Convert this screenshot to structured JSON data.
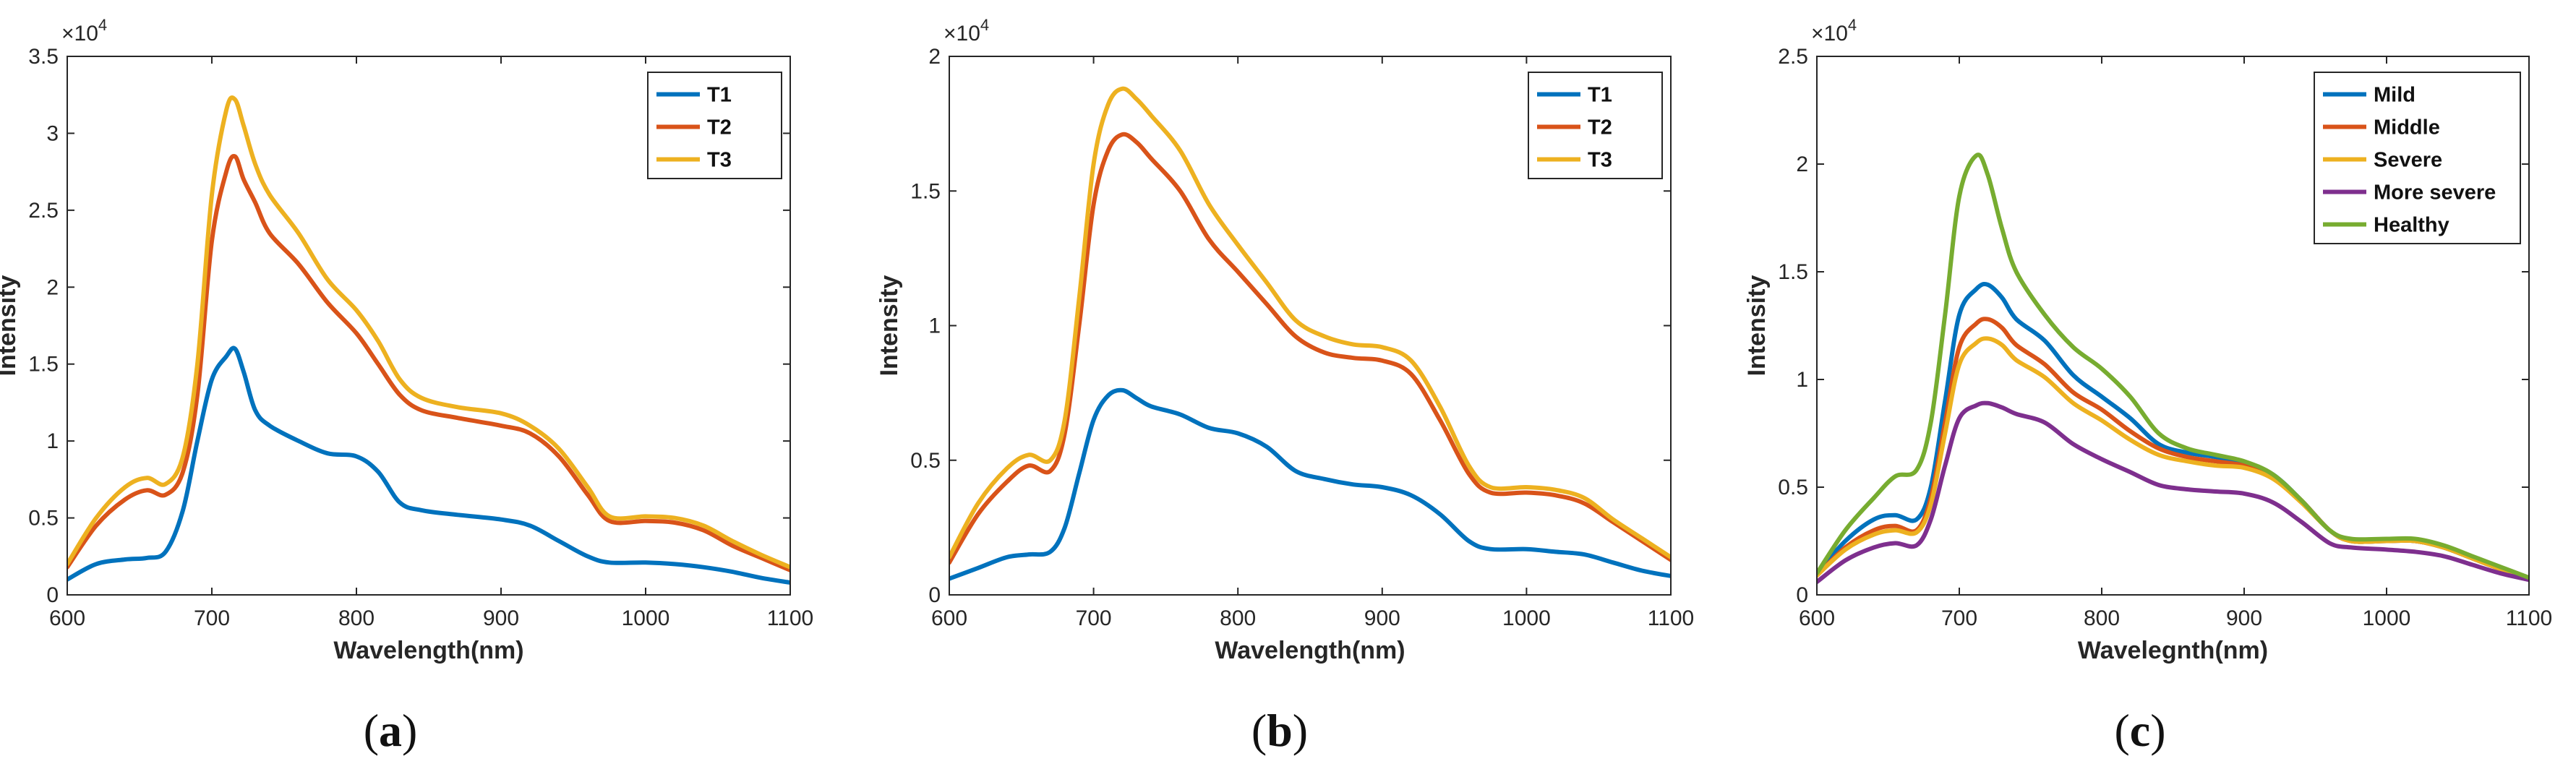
{
  "colors": {
    "blue": "#0072BD",
    "orange": "#D95319",
    "yellow": "#EDB120",
    "purple": "#7E2F8E",
    "green": "#77AC30"
  },
  "chart_data": [
    {
      "type": "line",
      "panel": "a",
      "caption_open": "(",
      "caption_letter": "a",
      "caption_close": ")",
      "xlabel": "Wavelength(nm)",
      "ylabel": "Intensity",
      "multiplier_base": "×10",
      "multiplier_exp": "4",
      "xlim": [
        600,
        1100
      ],
      "ylim": [
        0,
        3.5
      ],
      "xticks": [
        600,
        700,
        800,
        900,
        1000,
        1100
      ],
      "xtick_labels": [
        "600",
        "700",
        "800",
        "900",
        "1000",
        "1100"
      ],
      "yticks": [
        0,
        0.5,
        1,
        1.5,
        2,
        2.5,
        3,
        3.5
      ],
      "ytick_labels": [
        "0",
        "0.5",
        "1",
        "1.5",
        "2",
        "2.5",
        "3",
        "3.5"
      ],
      "legend_position": "top-right",
      "x": [
        600,
        620,
        640,
        655,
        668,
        680,
        690,
        700,
        710,
        716,
        722,
        730,
        740,
        760,
        780,
        800,
        815,
        830,
        845,
        870,
        900,
        920,
        940,
        960,
        975,
        1000,
        1020,
        1040,
        1060,
        1080,
        1100
      ],
      "series": [
        {
          "name": "T1",
          "color": "blue",
          "values": [
            0.1,
            0.2,
            0.23,
            0.24,
            0.28,
            0.55,
            1.0,
            1.4,
            1.55,
            1.6,
            1.45,
            1.2,
            1.1,
            1.0,
            0.92,
            0.9,
            0.8,
            0.6,
            0.55,
            0.52,
            0.49,
            0.45,
            0.35,
            0.25,
            0.21,
            0.21,
            0.2,
            0.18,
            0.15,
            0.11,
            0.08
          ]
        },
        {
          "name": "T2",
          "color": "orange",
          "values": [
            0.18,
            0.45,
            0.62,
            0.68,
            0.65,
            0.8,
            1.3,
            2.3,
            2.75,
            2.85,
            2.7,
            2.55,
            2.35,
            2.15,
            1.9,
            1.7,
            1.5,
            1.3,
            1.2,
            1.15,
            1.1,
            1.05,
            0.9,
            0.65,
            0.48,
            0.48,
            0.47,
            0.42,
            0.32,
            0.24,
            0.16
          ]
        },
        {
          "name": "T3",
          "color": "yellow",
          "values": [
            0.2,
            0.5,
            0.7,
            0.76,
            0.72,
            0.9,
            1.5,
            2.6,
            3.15,
            3.22,
            3.05,
            2.8,
            2.6,
            2.35,
            2.05,
            1.85,
            1.65,
            1.4,
            1.28,
            1.22,
            1.18,
            1.1,
            0.95,
            0.7,
            0.51,
            0.51,
            0.5,
            0.45,
            0.35,
            0.26,
            0.18
          ]
        }
      ]
    },
    {
      "type": "line",
      "panel": "b",
      "caption_open": "(",
      "caption_letter": "b",
      "caption_close": ")",
      "xlabel": "Wavelength(nm)",
      "ylabel": "Intensity",
      "multiplier_base": "×10",
      "multiplier_exp": "4",
      "xlim": [
        600,
        1100
      ],
      "ylim": [
        0,
        2
      ],
      "xticks": [
        600,
        700,
        800,
        900,
        1000,
        1100
      ],
      "xtick_labels": [
        "600",
        "700",
        "800",
        "900",
        "1000",
        "1100"
      ],
      "yticks": [
        0,
        0.5,
        1,
        1.5,
        2
      ],
      "ytick_labels": [
        "0",
        "0.5",
        "1",
        "1.5",
        "2"
      ],
      "legend_position": "top-right",
      "x": [
        600,
        620,
        640,
        655,
        670,
        680,
        690,
        700,
        710,
        720,
        730,
        740,
        760,
        780,
        800,
        820,
        840,
        860,
        880,
        900,
        920,
        940,
        960,
        975,
        1000,
        1020,
        1040,
        1060,
        1080,
        1100
      ],
      "series": [
        {
          "name": "T1",
          "color": "blue",
          "values": [
            0.06,
            0.1,
            0.14,
            0.15,
            0.16,
            0.25,
            0.45,
            0.65,
            0.74,
            0.76,
            0.73,
            0.7,
            0.67,
            0.62,
            0.6,
            0.55,
            0.46,
            0.43,
            0.41,
            0.4,
            0.37,
            0.3,
            0.2,
            0.17,
            0.17,
            0.16,
            0.15,
            0.12,
            0.09,
            0.07
          ]
        },
        {
          "name": "T2",
          "color": "orange",
          "values": [
            0.12,
            0.3,
            0.42,
            0.48,
            0.46,
            0.6,
            1.0,
            1.45,
            1.65,
            1.71,
            1.68,
            1.62,
            1.5,
            1.32,
            1.2,
            1.08,
            0.96,
            0.9,
            0.88,
            0.87,
            0.82,
            0.65,
            0.45,
            0.38,
            0.38,
            0.37,
            0.34,
            0.27,
            0.2,
            0.13
          ]
        },
        {
          "name": "T3",
          "color": "yellow",
          "values": [
            0.14,
            0.34,
            0.47,
            0.52,
            0.5,
            0.65,
            1.1,
            1.6,
            1.82,
            1.88,
            1.84,
            1.78,
            1.65,
            1.45,
            1.3,
            1.16,
            1.02,
            0.96,
            0.93,
            0.92,
            0.87,
            0.7,
            0.48,
            0.4,
            0.4,
            0.39,
            0.36,
            0.28,
            0.21,
            0.14
          ]
        }
      ]
    },
    {
      "type": "line",
      "panel": "c",
      "caption_open": "(",
      "caption_letter": "c",
      "caption_close": ")",
      "xlabel": "Wavelegnth(nm)",
      "ylabel": "Intensity",
      "multiplier_base": "×10",
      "multiplier_exp": "4",
      "xlim": [
        600,
        1100
      ],
      "ylim": [
        0,
        2.5
      ],
      "xticks": [
        600,
        700,
        800,
        900,
        1000,
        1100
      ],
      "xtick_labels": [
        "600",
        "700",
        "800",
        "900",
        "1000",
        "1100"
      ],
      "yticks": [
        0,
        0.5,
        1,
        1.5,
        2,
        2.5
      ],
      "ytick_labels": [
        "0",
        "0.5",
        "1",
        "1.5",
        "2",
        "2.5"
      ],
      "legend_position": "top-right",
      "x": [
        600,
        620,
        640,
        655,
        670,
        680,
        690,
        700,
        712,
        720,
        730,
        740,
        760,
        780,
        800,
        820,
        840,
        860,
        880,
        900,
        920,
        940,
        960,
        975,
        1000,
        1020,
        1040,
        1060,
        1080,
        1100
      ],
      "series": [
        {
          "name": "Mild",
          "color": "blue",
          "values": [
            0.1,
            0.25,
            0.35,
            0.37,
            0.35,
            0.5,
            0.9,
            1.3,
            1.42,
            1.44,
            1.38,
            1.28,
            1.18,
            1.02,
            0.92,
            0.82,
            0.7,
            0.66,
            0.64,
            0.61,
            0.56,
            0.44,
            0.3,
            0.25,
            0.25,
            0.25,
            0.22,
            0.17,
            0.12,
            0.08
          ]
        },
        {
          "name": "Middle",
          "color": "orange",
          "values": [
            0.09,
            0.22,
            0.3,
            0.32,
            0.3,
            0.45,
            0.8,
            1.15,
            1.26,
            1.28,
            1.24,
            1.16,
            1.07,
            0.94,
            0.86,
            0.76,
            0.68,
            0.64,
            0.62,
            0.6,
            0.55,
            0.44,
            0.3,
            0.25,
            0.25,
            0.25,
            0.22,
            0.17,
            0.12,
            0.08
          ]
        },
        {
          "name": "Severe",
          "color": "yellow",
          "values": [
            0.09,
            0.21,
            0.28,
            0.3,
            0.29,
            0.42,
            0.75,
            1.07,
            1.17,
            1.19,
            1.16,
            1.09,
            1.01,
            0.89,
            0.81,
            0.72,
            0.65,
            0.62,
            0.6,
            0.59,
            0.54,
            0.43,
            0.3,
            0.25,
            0.25,
            0.25,
            0.22,
            0.17,
            0.12,
            0.08
          ]
        },
        {
          "name": "More severe",
          "color": "purple",
          "values": [
            0.06,
            0.16,
            0.22,
            0.24,
            0.23,
            0.35,
            0.6,
            0.82,
            0.88,
            0.89,
            0.87,
            0.84,
            0.8,
            0.7,
            0.63,
            0.57,
            0.51,
            0.49,
            0.48,
            0.47,
            0.43,
            0.34,
            0.24,
            0.22,
            0.21,
            0.2,
            0.18,
            0.14,
            0.1,
            0.07
          ]
        },
        {
          "name": "Healthy",
          "color": "green",
          "values": [
            0.1,
            0.3,
            0.45,
            0.55,
            0.58,
            0.8,
            1.3,
            1.85,
            2.04,
            1.95,
            1.7,
            1.5,
            1.3,
            1.15,
            1.05,
            0.92,
            0.75,
            0.68,
            0.65,
            0.62,
            0.56,
            0.44,
            0.3,
            0.26,
            0.26,
            0.26,
            0.23,
            0.18,
            0.13,
            0.08
          ]
        }
      ]
    }
  ]
}
